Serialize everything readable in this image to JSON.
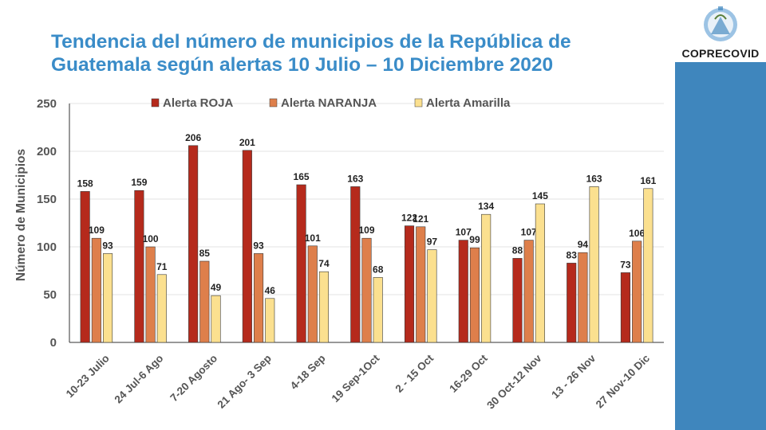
{
  "header": {
    "title_line1": "Tendencia del número de municipios de la República de",
    "title_line2": "Guatemala según alertas 10 Julio – 10 Diciembre 2020"
  },
  "logo": {
    "name": "COPRECOVID",
    "icon": "guatemala-coat-of-arms-icon"
  },
  "colors": {
    "title": "#3a8cc8",
    "sidebar": "#3f86bd"
  },
  "chart_data": {
    "type": "bar",
    "ylabel": "Número de Municipios",
    "xlabel": "",
    "ylim": [
      0,
      250
    ],
    "yticks": [
      0,
      50,
      100,
      150,
      200,
      250
    ],
    "grid": true,
    "legend_position": "top",
    "categories": [
      "10-23 Julio",
      "24 Jul-6 Ago",
      "7-20 Agosto",
      "21 Ago- 3 Sep",
      "4-18 Sep",
      "19 Sep-1Oct",
      "2 - 15 Oct",
      "16-29 Oct",
      "30 Oct-12 Nov",
      "13 - 26 Nov",
      "27 Nov-10 Dic"
    ],
    "series": [
      {
        "name": "Alerta ROJA",
        "color": "#b52a1c",
        "values": [
          158,
          159,
          206,
          201,
          165,
          163,
          122,
          107,
          88,
          83,
          73
        ]
      },
      {
        "name": "Alerta NARANJA",
        "color": "#de7f4b",
        "values": [
          109,
          100,
          85,
          93,
          101,
          109,
          121,
          99,
          107,
          94,
          106
        ]
      },
      {
        "name": "Alerta Amarilla",
        "color": "#fbe08f",
        "values": [
          93,
          71,
          49,
          46,
          74,
          68,
          97,
          134,
          145,
          163,
          161
        ]
      }
    ]
  }
}
